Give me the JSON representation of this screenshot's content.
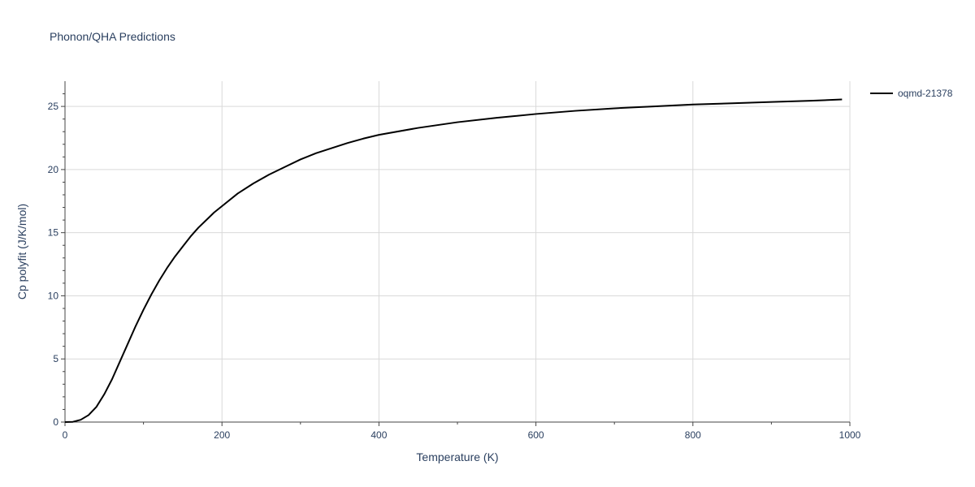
{
  "chart_data": {
    "type": "line",
    "title": "Phonon/QHA Predictions",
    "xlabel": "Temperature (K)",
    "ylabel": "Cp polyfit (J/K/mol)",
    "xlim": [
      0,
      1000
    ],
    "ylim": [
      0,
      27
    ],
    "xticks": [
      0,
      200,
      400,
      600,
      800,
      1000
    ],
    "yticks": [
      0,
      5,
      10,
      15,
      20,
      25
    ],
    "grid": true,
    "legend_position": "top-right",
    "line_color": "#000000",
    "series": [
      {
        "name": "oqmd-21378",
        "x": [
          0,
          10,
          20,
          30,
          40,
          50,
          60,
          70,
          80,
          90,
          100,
          110,
          120,
          130,
          140,
          150,
          160,
          170,
          180,
          190,
          200,
          220,
          240,
          260,
          280,
          300,
          320,
          340,
          360,
          380,
          400,
          450,
          500,
          550,
          600,
          650,
          700,
          750,
          800,
          850,
          900,
          950,
          990
        ],
        "y": [
          0,
          0.02,
          0.18,
          0.55,
          1.2,
          2.2,
          3.4,
          4.8,
          6.2,
          7.6,
          8.9,
          10.1,
          11.2,
          12.2,
          13.1,
          13.9,
          14.7,
          15.4,
          16.0,
          16.6,
          17.1,
          18.1,
          18.9,
          19.6,
          20.2,
          20.8,
          21.3,
          21.7,
          22.1,
          22.45,
          22.75,
          23.3,
          23.75,
          24.1,
          24.4,
          24.65,
          24.85,
          25.0,
          25.15,
          25.25,
          25.35,
          25.45,
          25.55
        ]
      }
    ]
  }
}
